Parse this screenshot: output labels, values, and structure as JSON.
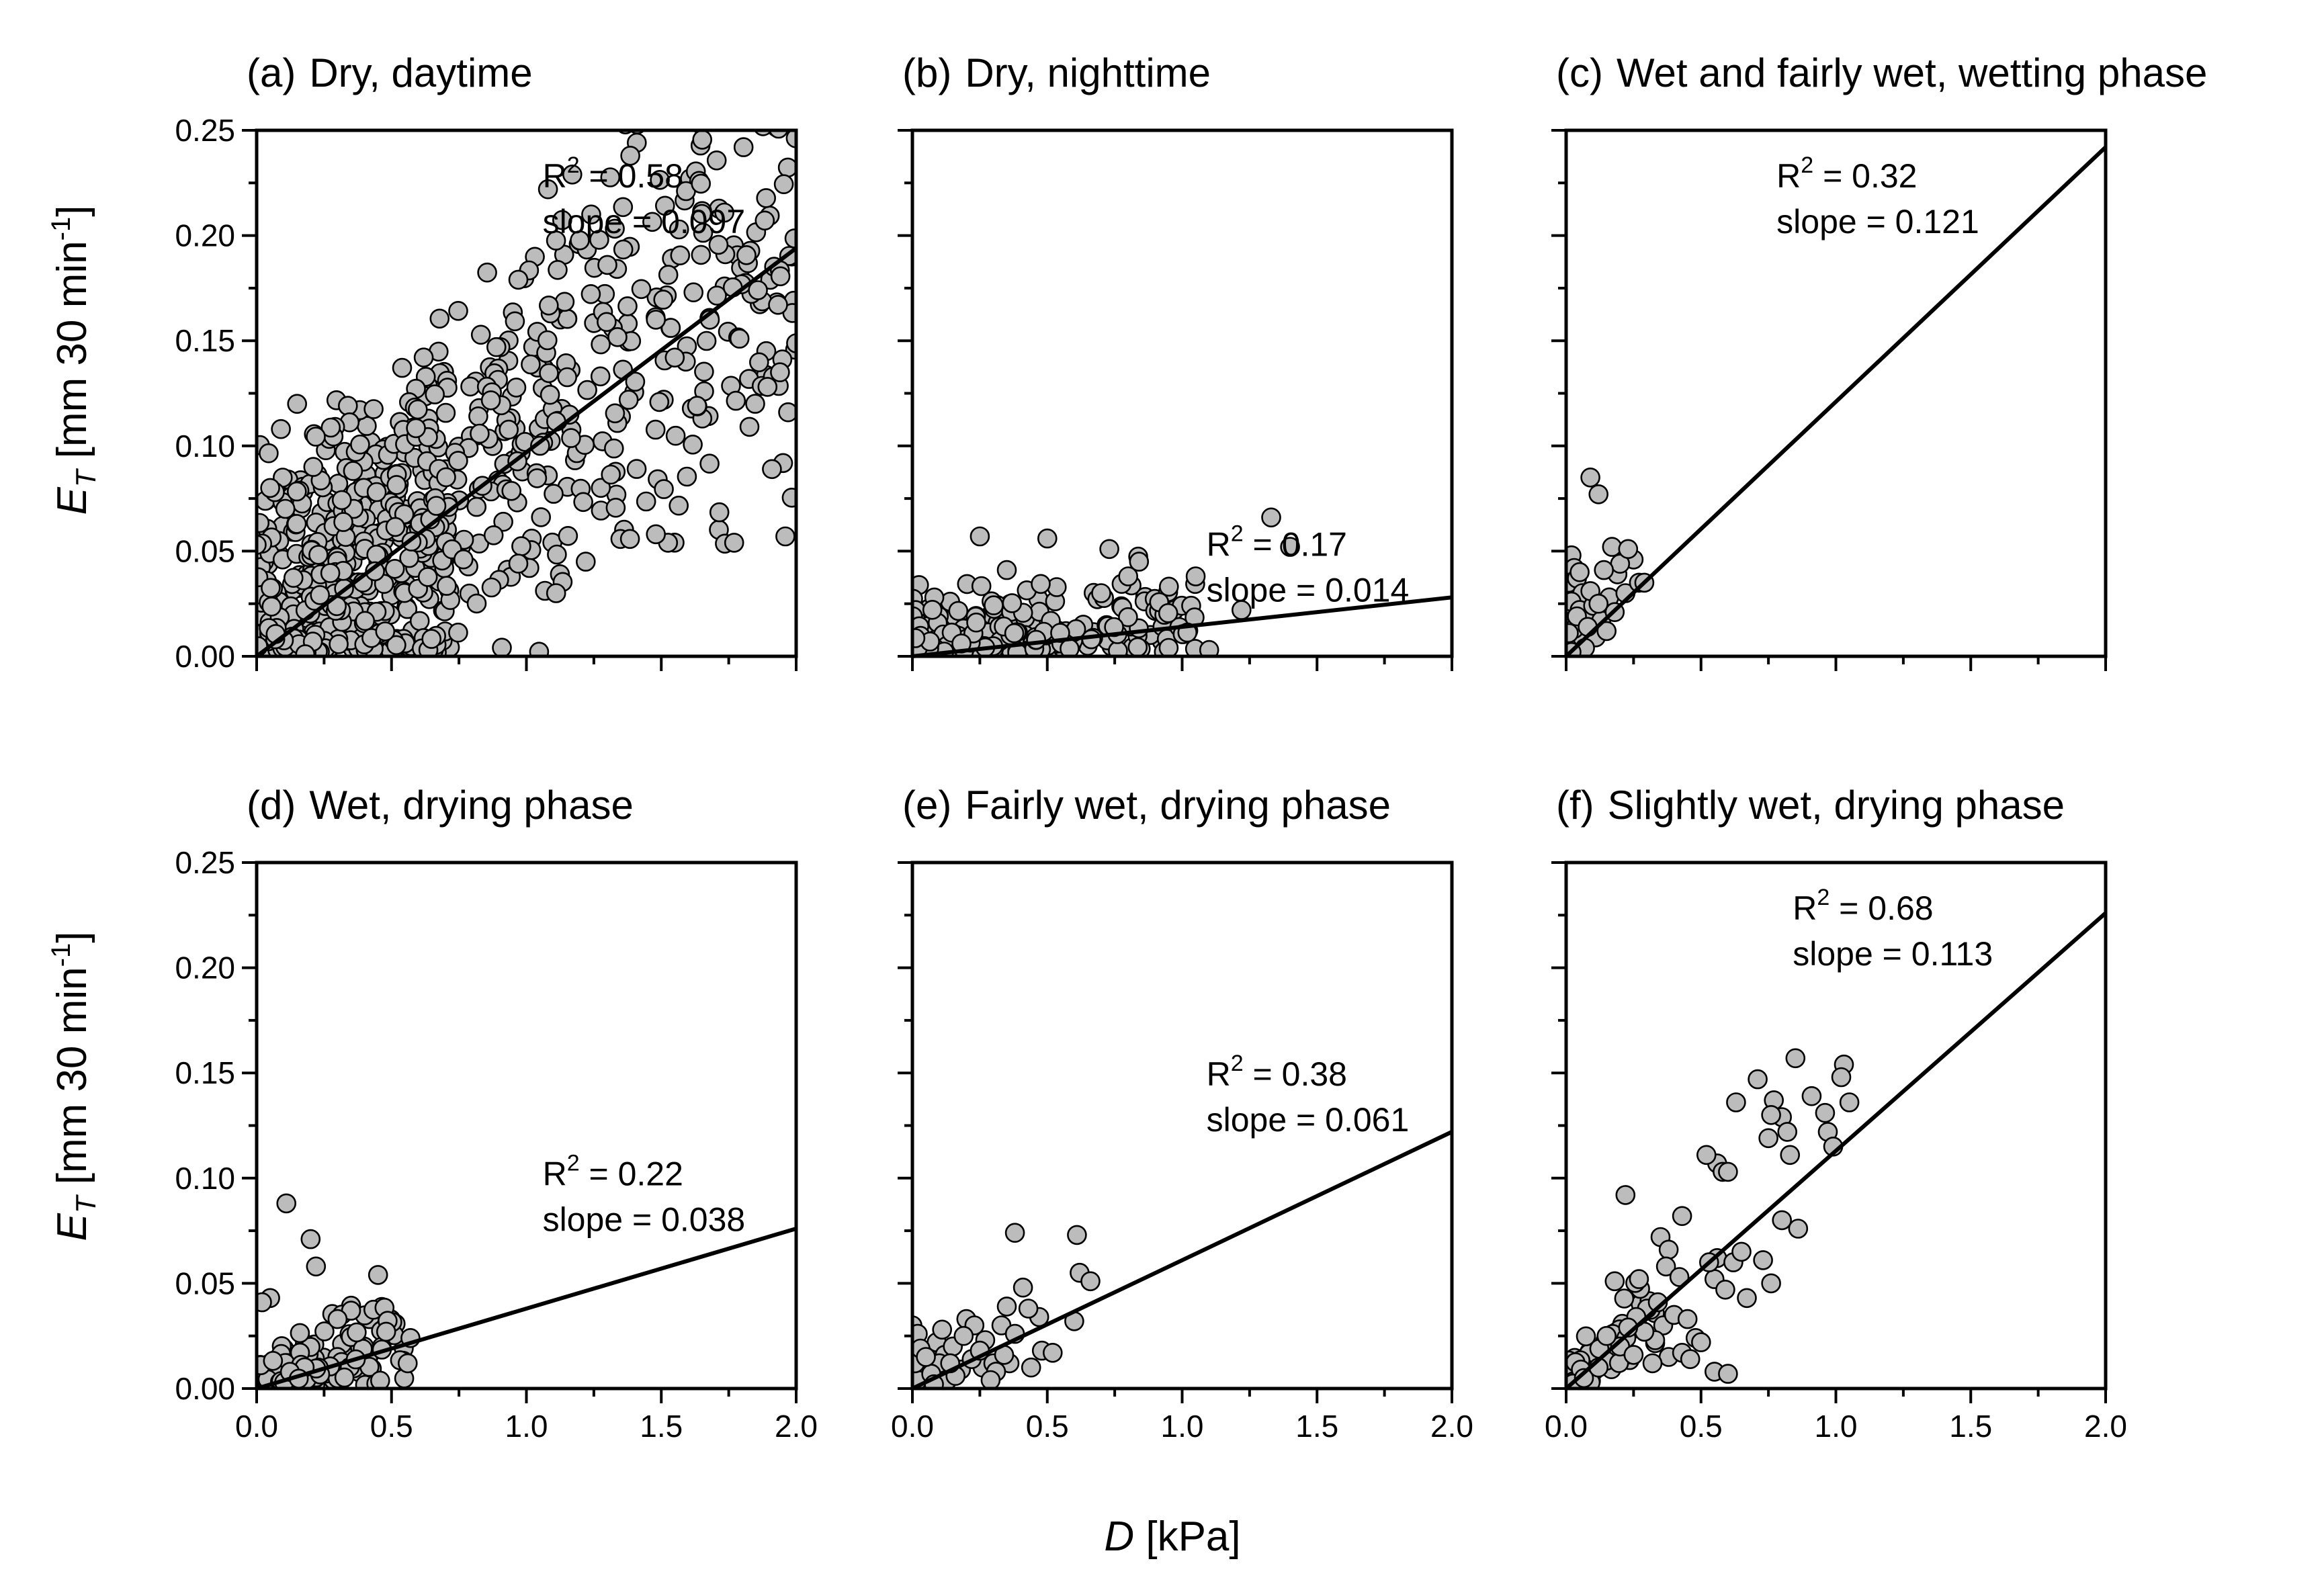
{
  "figure": {
    "x_label_var": "D",
    "x_label_unit": " [kPa]",
    "y_label_var": "E",
    "y_label_sub": "T",
    "y_label_unit": " [mm 30 min",
    "y_label_sup": "-1",
    "y_label_close": "]"
  },
  "chart_data": [
    {
      "type": "scatter",
      "panel": "a",
      "title_letter": "(a)",
      "title": "Dry, daytime",
      "xlabel": "D [kPa]",
      "ylabel": "E_T [mm 30 min-1]",
      "xlim": [
        0,
        2
      ],
      "ylim": [
        0,
        0.25
      ],
      "x_ticks": [
        "0.0",
        "0.5",
        "1.0",
        "1.5",
        "2.0"
      ],
      "y_ticks": [
        "0.00",
        "0.05",
        "0.10",
        "0.15",
        "0.20",
        "0.25"
      ],
      "show_x_tick_labels": false,
      "show_y_tick_labels": true,
      "r2_label": "R",
      "r2_value": " = 0.58",
      "slope_label": "slope = 0.097",
      "slope": 0.097,
      "fit": {
        "slope": 0.097,
        "intercept": 0
      },
      "cloud": {
        "n": 900,
        "x_max": 2.0,
        "x_mode": 0.6,
        "noise": 0.036,
        "seed": 11
      },
      "points": [
        [
          1.08,
          0.222
        ],
        [
          1.17,
          0.229
        ],
        [
          1.24,
          0.21
        ],
        [
          1.27,
          0.198
        ],
        [
          1.3,
          0.186
        ],
        [
          0.97,
          0.179
        ],
        [
          1.48,
          0.16
        ],
        [
          1.55,
          0.142
        ],
        [
          1.68,
          0.16
        ],
        [
          1.79,
          0.151
        ],
        [
          1.94,
          0.135
        ],
        [
          1.97,
          0.116
        ],
        [
          1.91,
          0.089
        ],
        [
          1.96,
          0.057
        ],
        [
          1.77,
          0.054
        ],
        [
          1.48,
          0.058
        ],
        [
          1.22,
          0.045
        ],
        [
          1.11,
          0.03
        ],
        [
          0.15,
          0.12
        ],
        [
          0.09,
          0.108
        ],
        [
          0.05,
          0.08
        ],
        [
          0.21,
          0.09
        ],
        [
          0.18,
          0.001
        ],
        [
          0.0,
          0.053
        ]
      ]
    },
    {
      "type": "scatter",
      "panel": "b",
      "title_letter": "(b)",
      "title": "Dry, nighttime",
      "xlabel": "D [kPa]",
      "ylabel": "E_T [mm 30 min-1]",
      "xlim": [
        0,
        2
      ],
      "ylim": [
        0,
        0.25
      ],
      "x_ticks": [
        "0.0",
        "0.5",
        "1.0",
        "1.5",
        "2.0"
      ],
      "y_ticks": [
        "0.00",
        "0.05",
        "0.10",
        "0.15",
        "0.20",
        "0.25"
      ],
      "show_x_tick_labels": false,
      "show_y_tick_labels": false,
      "r2_label": "R",
      "r2_value": " = 0.17",
      "slope_label": "slope = 0.014",
      "slope": 0.014,
      "fit": {
        "slope": 0.014,
        "intercept": 0
      },
      "cloud": {
        "n": 320,
        "x_max": 1.05,
        "x_mode": 0.45,
        "noise": 0.012,
        "seed": 23
      },
      "points": [
        [
          1.33,
          0.066
        ],
        [
          1.4,
          0.052
        ],
        [
          1.22,
          0.022
        ],
        [
          0.84,
          0.045
        ],
        [
          0.73,
          0.051
        ],
        [
          0.25,
          0.057
        ],
        [
          0.5,
          0.056
        ],
        [
          0.8,
          0.038
        ],
        [
          1.05,
          0.038
        ],
        [
          0.7,
          0.03
        ],
        [
          0.35,
          0.041
        ],
        [
          0.95,
          0.004
        ],
        [
          1.1,
          0.003
        ]
      ]
    },
    {
      "type": "scatter",
      "panel": "c",
      "title_letter": "(c)",
      "title": "Wet and fairly wet, wetting phase",
      "xlabel": "D [kPa]",
      "ylabel": "E_T [mm 30 min-1]",
      "xlim": [
        0,
        2
      ],
      "ylim": [
        0,
        0.25
      ],
      "x_ticks": [
        "0.0",
        "0.5",
        "1.0",
        "1.5",
        "2.0"
      ],
      "y_ticks": [
        "0.00",
        "0.05",
        "0.10",
        "0.15",
        "0.20",
        "0.25"
      ],
      "show_x_tick_labels": false,
      "show_y_tick_labels": false,
      "r2_label": "R",
      "r2_value": " = 0.32",
      "slope_label": "slope = 0.121",
      "slope": 0.121,
      "fit": {
        "slope": 0.121,
        "intercept": 0
      },
      "points": [
        [
          0.09,
          0.085
        ],
        [
          0.12,
          0.077
        ],
        [
          0.02,
          0.048
        ],
        [
          0.03,
          0.042
        ],
        [
          0.01,
          0.035
        ],
        [
          0.04,
          0.037
        ],
        [
          0.06,
          0.03
        ],
        [
          0.02,
          0.026
        ],
        [
          0.05,
          0.022
        ],
        [
          0.08,
          0.018
        ],
        [
          0.1,
          0.024
        ],
        [
          0.13,
          0.017
        ],
        [
          0.16,
          0.028
        ],
        [
          0.19,
          0.039
        ],
        [
          0.22,
          0.03
        ],
        [
          0.25,
          0.046
        ],
        [
          0.27,
          0.035
        ],
        [
          0.29,
          0.035
        ],
        [
          0.17,
          0.052
        ],
        [
          0.2,
          0.044
        ],
        [
          0.14,
          0.041
        ],
        [
          0.06,
          0.009
        ],
        [
          0.03,
          0.013
        ],
        [
          0.11,
          0.009
        ],
        [
          0.07,
          0.004
        ],
        [
          0.02,
          0.002
        ],
        [
          0.04,
          0.019
        ],
        [
          0.09,
          0.031
        ],
        [
          0.15,
          0.012
        ],
        [
          0.18,
          0.021
        ],
        [
          0.23,
          0.051
        ],
        [
          0.01,
          0.011
        ],
        [
          0.05,
          0.04
        ],
        [
          0.12,
          0.025
        ],
        [
          0.08,
          0.014
        ]
      ]
    },
    {
      "type": "scatter",
      "panel": "d",
      "title_letter": "(d)",
      "title": "Wet, drying phase",
      "xlabel": "D [kPa]",
      "ylabel": "E_T [mm 30 min-1]",
      "xlim": [
        0,
        2
      ],
      "ylim": [
        0,
        0.25
      ],
      "x_ticks": [
        "0.0",
        "0.5",
        "1.0",
        "1.5",
        "2.0"
      ],
      "y_ticks": [
        "0.00",
        "0.05",
        "0.10",
        "0.15",
        "0.20",
        "0.25"
      ],
      "show_x_tick_labels": true,
      "show_y_tick_labels": true,
      "r2_label": "R",
      "r2_value": " = 0.22",
      "slope_label": "slope = 0.038",
      "slope": 0.038,
      "fit": {
        "slope": 0.038,
        "intercept": 0
      },
      "cloud": {
        "n": 170,
        "x_max": 0.55,
        "x_mode": 0.15,
        "noise": 0.01,
        "seed": 37
      },
      "points": [
        [
          0.11,
          0.088
        ],
        [
          0.2,
          0.071
        ],
        [
          0.22,
          0.058
        ],
        [
          0.45,
          0.054
        ],
        [
          0.56,
          0.012
        ],
        [
          0.57,
          0.024
        ],
        [
          0.05,
          0.043
        ],
        [
          0.02,
          0.041
        ],
        [
          0.35,
          0.037
        ],
        [
          0.3,
          0.033
        ],
        [
          0.48,
          0.027
        ]
      ]
    },
    {
      "type": "scatter",
      "panel": "e",
      "title_letter": "(e)",
      "title": "Fairly wet, drying phase",
      "xlabel": "D [kPa]",
      "ylabel": "E_T [mm 30 min-1]",
      "xlim": [
        0,
        2
      ],
      "ylim": [
        0,
        0.25
      ],
      "x_ticks": [
        "0.0",
        "0.5",
        "1.0",
        "1.5",
        "2.0"
      ],
      "y_ticks": [
        "0.00",
        "0.05",
        "0.10",
        "0.15",
        "0.20",
        "0.25"
      ],
      "show_x_tick_labels": true,
      "show_y_tick_labels": false,
      "r2_label": "R",
      "r2_value": " = 0.38",
      "slope_label": "slope = 0.061",
      "slope": 0.061,
      "fit": {
        "slope": 0.061,
        "intercept": 0
      },
      "points": [
        [
          0.38,
          0.074
        ],
        [
          0.61,
          0.073
        ],
        [
          0.62,
          0.055
        ],
        [
          0.66,
          0.051
        ],
        [
          0.41,
          0.048
        ],
        [
          0.6,
          0.032
        ],
        [
          0.47,
          0.034
        ],
        [
          0.35,
          0.039
        ],
        [
          0.43,
          0.038
        ],
        [
          0.33,
          0.03
        ],
        [
          0.38,
          0.026
        ],
        [
          0.2,
          0.033
        ],
        [
          0.23,
          0.03
        ],
        [
          0.0,
          0.03
        ],
        [
          0.02,
          0.026
        ],
        [
          0.06,
          0.018
        ],
        [
          0.09,
          0.022
        ],
        [
          0.12,
          0.016
        ],
        [
          0.15,
          0.02
        ],
        [
          0.26,
          0.01
        ],
        [
          0.3,
          0.012
        ],
        [
          0.27,
          0.023
        ],
        [
          0.1,
          0.012
        ],
        [
          0.04,
          0.01
        ],
        [
          0.02,
          0.004
        ],
        [
          0.01,
          0.012
        ],
        [
          0.07,
          0.007
        ],
        [
          0.13,
          0.004
        ],
        [
          0.18,
          0.009
        ],
        [
          0.22,
          0.014
        ],
        [
          0.48,
          0.018
        ],
        [
          0.52,
          0.017
        ],
        [
          0.44,
          0.01
        ],
        [
          0.36,
          0.012
        ],
        [
          0.16,
          0.006
        ],
        [
          0.03,
          0.019
        ],
        [
          0.08,
          0.002
        ],
        [
          0.11,
          0.028
        ],
        [
          0.19,
          0.025
        ],
        [
          0.25,
          0.018
        ],
        [
          0.05,
          0.015
        ],
        [
          0.31,
          0.008
        ],
        [
          0.29,
          0.004
        ],
        [
          0.34,
          0.016
        ],
        [
          0.14,
          0.012
        ]
      ]
    },
    {
      "type": "scatter",
      "panel": "f",
      "title_letter": "(f)",
      "title": "Slightly wet, drying phase",
      "xlabel": "D [kPa]",
      "ylabel": "E_T [mm 30 min-1]",
      "xlim": [
        0,
        2
      ],
      "ylim": [
        0,
        0.25
      ],
      "x_ticks": [
        "0.0",
        "0.5",
        "1.0",
        "1.5",
        "2.0"
      ],
      "y_ticks": [
        "0.00",
        "0.05",
        "0.10",
        "0.15",
        "0.20",
        "0.25"
      ],
      "show_x_tick_labels": true,
      "show_y_tick_labels": false,
      "r2_label": "R",
      "r2_value": " = 0.68",
      "slope_label": "slope = 0.113",
      "slope": 0.113,
      "fit": {
        "slope": 0.113,
        "intercept": 0
      },
      "cloud": {
        "n": 70,
        "x_max": 0.35,
        "x_mode": 0.08,
        "noise": 0.009,
        "seed": 53
      },
      "points": [
        [
          0.85,
          0.157
        ],
        [
          1.03,
          0.154
        ],
        [
          1.05,
          0.136
        ],
        [
          1.02,
          0.148
        ],
        [
          0.71,
          0.147
        ],
        [
          0.77,
          0.137
        ],
        [
          0.8,
          0.129
        ],
        [
          0.76,
          0.13
        ],
        [
          0.82,
          0.122
        ],
        [
          0.91,
          0.139
        ],
        [
          0.97,
          0.122
        ],
        [
          0.96,
          0.131
        ],
        [
          0.99,
          0.115
        ],
        [
          0.83,
          0.111
        ],
        [
          0.75,
          0.119
        ],
        [
          0.63,
          0.136
        ],
        [
          0.56,
          0.107
        ],
        [
          0.58,
          0.103
        ],
        [
          0.52,
          0.111
        ],
        [
          0.6,
          0.103
        ],
        [
          0.22,
          0.092
        ],
        [
          0.43,
          0.082
        ],
        [
          0.35,
          0.072
        ],
        [
          0.38,
          0.066
        ],
        [
          0.37,
          0.058
        ],
        [
          0.42,
          0.053
        ],
        [
          0.56,
          0.062
        ],
        [
          0.55,
          0.052
        ],
        [
          0.53,
          0.06
        ],
        [
          0.59,
          0.047
        ],
        [
          0.62,
          0.06
        ],
        [
          0.65,
          0.065
        ],
        [
          0.67,
          0.043
        ],
        [
          0.73,
          0.061
        ],
        [
          0.76,
          0.05
        ],
        [
          0.86,
          0.076
        ],
        [
          0.8,
          0.08
        ],
        [
          0.18,
          0.051
        ],
        [
          0.27,
          0.052
        ],
        [
          0.3,
          0.038
        ],
        [
          0.34,
          0.041
        ],
        [
          0.36,
          0.03
        ],
        [
          0.4,
          0.035
        ],
        [
          0.45,
          0.033
        ],
        [
          0.48,
          0.024
        ],
        [
          0.33,
          0.023
        ],
        [
          0.29,
          0.027
        ],
        [
          0.26,
          0.034
        ],
        [
          0.23,
          0.029
        ],
        [
          0.2,
          0.02
        ],
        [
          0.38,
          0.015
        ],
        [
          0.43,
          0.017
        ],
        [
          0.46,
          0.014
        ],
        [
          0.55,
          0.008
        ],
        [
          0.6,
          0.007
        ],
        [
          0.5,
          0.022
        ],
        [
          0.32,
          0.012
        ],
        [
          0.25,
          0.016
        ],
        [
          0.15,
          0.025
        ],
        [
          0.12,
          0.01
        ]
      ]
    }
  ]
}
